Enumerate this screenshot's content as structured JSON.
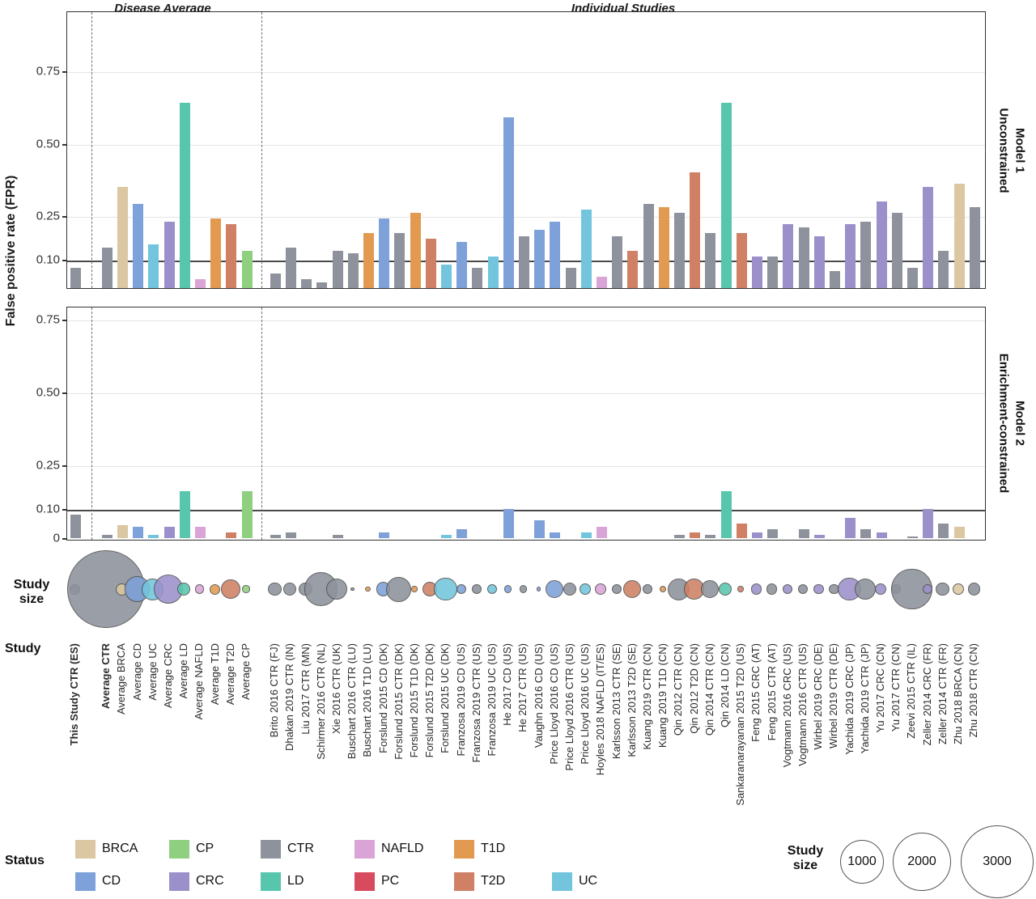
{
  "titles": {
    "left": "Disease Average",
    "right": "Individual Studies"
  },
  "y_axis": {
    "label": "False positive rate (FPR)"
  },
  "facets": [
    {
      "line1": "Unconstrained",
      "line2": "Model 1"
    },
    {
      "line1": "Enrichment-constrained",
      "line2": "Model 2"
    }
  ],
  "row_headers": {
    "study_size_1": "Study",
    "study_size_2": "size",
    "study": "Study",
    "status": "Status"
  },
  "status_colors": {
    "BRCA": "#dbc7a1",
    "CD": "#7da1d8",
    "CP": "#8ed080",
    "CRC": "#9c90cb",
    "CTR": "#8d929c",
    "LD": "#58c6ac",
    "NAFLD": "#daa5d6",
    "PC": "#d84b5f",
    "T1D": "#e29a51",
    "T2D": "#cf8065",
    "UC": "#72c5dc"
  },
  "legend": {
    "title": "Status",
    "row1": [
      "BRCA",
      "CP",
      "CTR",
      "NAFLD",
      "T1D"
    ],
    "row2": [
      "CD",
      "CRC",
      "LD",
      "PC",
      "T2D",
      "UC"
    ]
  },
  "size_legend": {
    "title_1": "Study",
    "title_2": "size",
    "values": [
      "1000",
      "2000",
      "3000"
    ]
  },
  "chart_data": {
    "type": "bar",
    "groups": [
      "Disease Average",
      "Individual Studies"
    ],
    "panels": [
      {
        "label": "Unconstrained Model 1",
        "field": "fpr_model1"
      },
      {
        "label": "Enrichment-constrained Model 2",
        "field": "fpr_model2"
      }
    ],
    "ylabel": "False positive rate (FPR)",
    "yticks_panel1": [
      0.75,
      0.5,
      0.25,
      0.1
    ],
    "yticks_panel2": [
      0.75,
      0.5,
      0.25,
      0.1,
      0
    ],
    "threshold": 0.1,
    "ylim": [
      0,
      0.95
    ],
    "size_scale": [
      1000,
      2000,
      3000
    ],
    "studies": [
      {
        "label": "This Study CTR (ES)",
        "status": "CTR",
        "fpr_model1": 0.07,
        "fpr_model2": 0.08,
        "size": 60,
        "bold": true
      },
      {
        "label": "Average CTR",
        "status": "CTR",
        "fpr_model1": 0.14,
        "fpr_model2": 0.01,
        "size": 3300,
        "bold": true
      },
      {
        "label": "Average BRCA",
        "status": "BRCA",
        "fpr_model1": 0.35,
        "fpr_model2": 0.045,
        "size": 80,
        "bold": false
      },
      {
        "label": "Average CD",
        "status": "CD",
        "fpr_model1": 0.29,
        "fpr_model2": 0.04,
        "size": 350,
        "bold": false
      },
      {
        "label": "Average UC",
        "status": "UC",
        "fpr_model1": 0.15,
        "fpr_model2": 0.01,
        "size": 260,
        "bold": false
      },
      {
        "label": "Average CRC",
        "status": "CRC",
        "fpr_model1": 0.23,
        "fpr_model2": 0.04,
        "size": 480,
        "bold": false
      },
      {
        "label": "Average LD",
        "status": "LD",
        "fpr_model1": 0.64,
        "fpr_model2": 0.16,
        "size": 90,
        "bold": false
      },
      {
        "label": "Average NAFLD",
        "status": "NAFLD",
        "fpr_model1": 0.03,
        "fpr_model2": 0.04,
        "size": 50,
        "bold": false
      },
      {
        "label": "Average T1D",
        "status": "T1D",
        "fpr_model1": 0.24,
        "fpr_model2": 0,
        "size": 60,
        "bold": false
      },
      {
        "label": "Average T2D",
        "status": "T2D",
        "fpr_model1": 0.22,
        "fpr_model2": 0.02,
        "size": 200,
        "bold": false
      },
      {
        "label": "Average CP",
        "status": "CP",
        "fpr_model1": 0.13,
        "fpr_model2": 0.16,
        "size": 30,
        "bold": false
      },
      {
        "label": "Brito 2016 CTR (FJ)",
        "status": "CTR",
        "fpr_model1": 0.05,
        "fpr_model2": 0.01,
        "size": 100,
        "bold": false
      },
      {
        "label": "Dhakan 2019 CTR (IN)",
        "status": "CTR",
        "fpr_model1": 0.14,
        "fpr_model2": 0.02,
        "size": 90,
        "bold": false
      },
      {
        "label": "Liu 2017 CTR (MN)",
        "status": "CTR",
        "fpr_model1": 0.03,
        "fpr_model2": 0,
        "size": 100,
        "bold": false
      },
      {
        "label": "Schirmer 2016 CTR (NL)",
        "status": "CTR",
        "fpr_model1": 0.02,
        "fpr_model2": 0,
        "size": 600,
        "bold": false
      },
      {
        "label": "Xie 2016 CTR (UK)",
        "status": "CTR",
        "fpr_model1": 0.13,
        "fpr_model2": 0.01,
        "size": 250,
        "bold": false
      },
      {
        "label": "Buschart 2016 CTR (LU)",
        "status": "CTR",
        "fpr_model1": 0.12,
        "fpr_model2": 0,
        "size": 8,
        "bold": false
      },
      {
        "label": "Buschart 2016 T1D (LU)",
        "status": "T1D",
        "fpr_model1": 0.19,
        "fpr_model2": 0,
        "size": 15,
        "bold": false
      },
      {
        "label": "Forslund 2015 CD (DK)",
        "status": "CD",
        "fpr_model1": 0.24,
        "fpr_model2": 0.02,
        "size": 110,
        "bold": false
      },
      {
        "label": "Forslund 2015 CTR (DK)",
        "status": "CTR",
        "fpr_model1": 0.19,
        "fpr_model2": 0,
        "size": 340,
        "bold": false
      },
      {
        "label": "Forslund 2015 T1D (DK)",
        "status": "T1D",
        "fpr_model1": 0.26,
        "fpr_model2": 0,
        "size": 20,
        "bold": false
      },
      {
        "label": "Forslund 2015 T2D (DK)",
        "status": "T2D",
        "fpr_model1": 0.17,
        "fpr_model2": 0,
        "size": 120,
        "bold": false
      },
      {
        "label": "Forslund 2015 UC (DK)",
        "status": "UC",
        "fpr_model1": 0.08,
        "fpr_model2": 0.01,
        "size": 290,
        "bold": false
      },
      {
        "label": "Franzosa 2019 CD (US)",
        "status": "CD",
        "fpr_model1": 0.16,
        "fpr_model2": 0.03,
        "size": 50,
        "bold": false
      },
      {
        "label": "Franzosa 2019 CTR (US)",
        "status": "CTR",
        "fpr_model1": 0.07,
        "fpr_model2": 0,
        "size": 50,
        "bold": false
      },
      {
        "label": "Franzosa 2019 UC (US)",
        "status": "UC",
        "fpr_model1": 0.11,
        "fpr_model2": 0,
        "size": 50,
        "bold": false
      },
      {
        "label": "He 2017 CD (US)",
        "status": "CD",
        "fpr_model1": 0.59,
        "fpr_model2": 0.1,
        "size": 30,
        "bold": false
      },
      {
        "label": "He 2017 CTR (US)",
        "status": "CTR",
        "fpr_model1": 0.18,
        "fpr_model2": 0,
        "size": 30,
        "bold": false
      },
      {
        "label": "Vaughn 2016 CD (US)",
        "status": "CD",
        "fpr_model1": 0.2,
        "fpr_model2": 0.06,
        "size": 10,
        "bold": false
      },
      {
        "label": "Price Lloyd 2016 CD (US)",
        "status": "CD",
        "fpr_model1": 0.23,
        "fpr_model2": 0.02,
        "size": 180,
        "bold": false
      },
      {
        "label": "Price Lloyd 2016 CTR (US)",
        "status": "CTR",
        "fpr_model1": 0.07,
        "fpr_model2": 0,
        "size": 100,
        "bold": false
      },
      {
        "label": "Price Lloyd 2016 UC (US)",
        "status": "UC",
        "fpr_model1": 0.27,
        "fpr_model2": 0.02,
        "size": 70,
        "bold": false
      },
      {
        "label": "Hoyles 2018 NAFLD (IT/ES)",
        "status": "NAFLD",
        "fpr_model1": 0.04,
        "fpr_model2": 0.04,
        "size": 70,
        "bold": false
      },
      {
        "label": "Karlsson 2013 CTR (SE)",
        "status": "CTR",
        "fpr_model1": 0.18,
        "fpr_model2": 0,
        "size": 50,
        "bold": false
      },
      {
        "label": "Karlsson 2013 T2D (SE)",
        "status": "T2D",
        "fpr_model1": 0.13,
        "fpr_model2": 0,
        "size": 180,
        "bold": false
      },
      {
        "label": "Kuang 2019 CTR (CN)",
        "status": "CTR",
        "fpr_model1": 0.29,
        "fpr_model2": 0,
        "size": 50,
        "bold": false
      },
      {
        "label": "Kuang 2019 T1D (CN)",
        "status": "T1D",
        "fpr_model1": 0.28,
        "fpr_model2": 0,
        "size": 25,
        "bold": false
      },
      {
        "label": "Qin 2012 CTR (CN)",
        "status": "CTR",
        "fpr_model1": 0.26,
        "fpr_model2": 0.01,
        "size": 260,
        "bold": false
      },
      {
        "label": "Qin 2012 T2D (CN)",
        "status": "T2D",
        "fpr_model1": 0.4,
        "fpr_model2": 0.02,
        "size": 230,
        "bold": false
      },
      {
        "label": "Qin 2014 CTR (CN)",
        "status": "CTR",
        "fpr_model1": 0.19,
        "fpr_model2": 0.01,
        "size": 180,
        "bold": false
      },
      {
        "label": "Qin 2014 LD (CN)",
        "status": "LD",
        "fpr_model1": 0.64,
        "fpr_model2": 0.16,
        "size": 100,
        "bold": false
      },
      {
        "label": "Sankaranarayanan 2015 T2D (US)",
        "status": "T2D",
        "fpr_model1": 0.19,
        "fpr_model2": 0.05,
        "size": 20,
        "bold": false
      },
      {
        "label": "Feng 2015 CRC (AT)",
        "status": "CRC",
        "fpr_model1": 0.11,
        "fpr_model2": 0.02,
        "size": 65,
        "bold": false
      },
      {
        "label": "Feng 2015 CTR (AT)",
        "status": "CTR",
        "fpr_model1": 0.11,
        "fpr_model2": 0.03,
        "size": 65,
        "bold": false
      },
      {
        "label": "Vogtmann 2016 CRC (US)",
        "status": "CRC",
        "fpr_model1": 0.22,
        "fpr_model2": 0,
        "size": 55,
        "bold": false
      },
      {
        "label": "Vogtmann 2016 CTR (US)",
        "status": "CTR",
        "fpr_model1": 0.21,
        "fpr_model2": 0.03,
        "size": 55,
        "bold": false
      },
      {
        "label": "Wirbel 2019 CRC (DE)",
        "status": "CRC",
        "fpr_model1": 0.18,
        "fpr_model2": 0.01,
        "size": 55,
        "bold": false
      },
      {
        "label": "Wirbel 2019 CTR (DE)",
        "status": "CTR",
        "fpr_model1": 0.06,
        "fpr_model2": 0,
        "size": 55,
        "bold": false
      },
      {
        "label": "Yachida 2019 CRC (JP)",
        "status": "CRC",
        "fpr_model1": 0.22,
        "fpr_model2": 0.07,
        "size": 290,
        "bold": false
      },
      {
        "label": "Yachida 2019 CTR (JP)",
        "status": "CTR",
        "fpr_model1": 0.23,
        "fpr_model2": 0.03,
        "size": 250,
        "bold": false
      },
      {
        "label": "Yu 2017 CRC (CN)",
        "status": "CRC",
        "fpr_model1": 0.3,
        "fpr_model2": 0.02,
        "size": 70,
        "bold": false
      },
      {
        "label": "Yu 2017 CTR (CN)",
        "status": "CTR",
        "fpr_model1": 0.26,
        "fpr_model2": 0,
        "size": 50,
        "bold": false
      },
      {
        "label": "Zeevi 2015 CTR (IL)",
        "status": "CTR",
        "fpr_model1": 0.07,
        "fpr_model2": 0.005,
        "size": 900,
        "bold": false
      },
      {
        "label": "Zeller 2014 CRC (FR)",
        "status": "CRC",
        "fpr_model1": 0.35,
        "fpr_model2": 0.1,
        "size": 50,
        "bold": false
      },
      {
        "label": "Zeller 2014 CTR (FR)",
        "status": "CTR",
        "fpr_model1": 0.13,
        "fpr_model2": 0.05,
        "size": 100,
        "bold": false
      },
      {
        "label": "Zhu 2018 BRCA (CN)",
        "status": "BRCA",
        "fpr_model1": 0.36,
        "fpr_model2": 0.04,
        "size": 70,
        "bold": false
      },
      {
        "label": "Zhu 2018 CTR (CN)",
        "status": "CTR",
        "fpr_model1": 0.28,
        "fpr_model2": 0,
        "size": 85,
        "bold": false
      }
    ]
  }
}
